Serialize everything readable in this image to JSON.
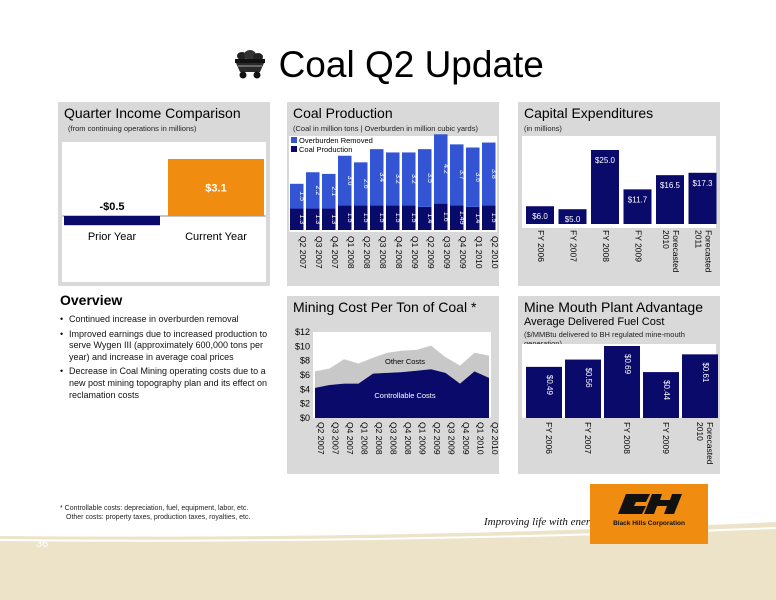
{
  "header": {
    "title": "Coal Q2 Update",
    "icon": "coal-cart-icon"
  },
  "colors": {
    "navy": "#0a0a6b",
    "blue": "#3355d4",
    "orange": "#f08c10",
    "gray": "#d9d9d9",
    "tan": "#ede3c8"
  },
  "overview": {
    "title": "Overview",
    "bullets": [
      "Continued increase in overburden removal",
      "Improved earnings due to increased production to serve Wygen III (approximately 600,000 tons per year) and increase in average coal prices",
      "Decrease in Coal Mining operating costs due to a new post mining topography plan and its effect on reclamation costs"
    ]
  },
  "footnote": {
    "line1": "* Controllable costs: depreciation, fuel, equipment, labor, etc.",
    "line2": "Other costs: property taxes, production taxes, royalties, etc."
  },
  "page_number": "36",
  "branding": {
    "tagline": "Improving life with energy",
    "company": "Black Hills Corporation"
  },
  "panels": {
    "income": {
      "title": "Quarter Income Comparison",
      "subtitle": "(from continuing operations in millions)"
    },
    "production": {
      "title": "Coal Production",
      "subtitle": "(Coal in million tons | Overburden in million cubic yards)"
    },
    "capex": {
      "title": "Capital Expenditures",
      "subtitle": "(in millions)"
    },
    "mining_cost": {
      "title": "Mining Cost Per Ton of Coal *"
    },
    "mine_mouth": {
      "title": "Mine Mouth Plant Advantage",
      "subtitle": "Average Delivered Fuel Cost",
      "note": "($/MMBtu delivered to BH regulated mine-mouth generation)"
    }
  },
  "chart_data": [
    {
      "type": "bar",
      "categories": [
        "Prior Year",
        "Current Year"
      ],
      "values": [
        -0.5,
        3.1
      ],
      "data_labels": [
        "-$0.5",
        "$3.1"
      ],
      "colors": [
        "#0a0a6b",
        "#f08c10"
      ]
    },
    {
      "type": "bar",
      "stacked": true,
      "categories": [
        "Q2 2007",
        "Q3 2007",
        "Q4 2007",
        "Q1 2008",
        "Q2 2008",
        "Q3 2008",
        "Q4 2008",
        "Q1 2009",
        "Q2 2009",
        "Q3 2009",
        "Q4 2009",
        "Q1 2010",
        "Q2 2010"
      ],
      "series": [
        {
          "name": "Coal Production",
          "values": [
            1.3,
            1.3,
            1.3,
            1.5,
            1.5,
            1.5,
            1.5,
            1.5,
            1.4,
            1.6,
            1.49,
            1.4,
            1.5
          ],
          "labels": [
            "1.3",
            "1.3",
            "1.3",
            "1.5",
            "1.5",
            "1.5",
            "1.5",
            "1.5",
            "1.4",
            "1.6",
            "1.49",
            "1.4",
            "1.5"
          ]
        },
        {
          "name": "Overburden Removed",
          "values": [
            1.5,
            2.2,
            2.1,
            3.0,
            2.6,
            3.4,
            3.2,
            3.2,
            3.5,
            4.2,
            3.7,
            3.6,
            3.8
          ],
          "labels": [
            "1.5",
            "2.2",
            "2.1",
            "3.0",
            "2.6",
            "3.4",
            "3.2",
            "3.2",
            "3.5",
            "4.2",
            "3.7",
            "3.6",
            "3.8"
          ]
        }
      ],
      "legend": [
        "Overburden Removed",
        "Coal Production"
      ]
    },
    {
      "type": "bar",
      "categories": [
        "FY 2006",
        "FY 2007",
        "FY 2008",
        "FY 2009",
        "Forecasted 2010",
        "Forecasted 2011"
      ],
      "values": [
        6.0,
        5.0,
        25.0,
        11.7,
        16.5,
        17.3
      ],
      "data_labels": [
        "$6.0",
        "$5.0",
        "$25.0",
        "$11.7",
        "$16.5",
        "$17.3"
      ]
    },
    {
      "type": "area",
      "stacked": true,
      "categories": [
        "Q2 2007",
        "Q3 2007",
        "Q4 2007",
        "Q1 2008",
        "Q2 2008",
        "Q3 2008",
        "Q4 2008",
        "Q1 2009",
        "Q2 2009",
        "Q3 2009",
        "Q4 2009",
        "Q1 2010",
        "Q2 2010"
      ],
      "series": [
        {
          "name": "Controllable Costs",
          "values": [
            4.2,
            4.6,
            4.8,
            4.8,
            6.2,
            6.3,
            6.4,
            6.6,
            6.8,
            6.3,
            4.8,
            6.5,
            5.6
          ]
        },
        {
          "name": "Other Costs",
          "values": [
            2.3,
            2.3,
            3.4,
            2.8,
            2.2,
            2.8,
            3.0,
            2.9,
            3.3,
            2.2,
            2.5,
            2.6,
            3.1
          ]
        }
      ],
      "yticks": [
        "$0",
        "$2",
        "$4",
        "$6",
        "$8",
        "$10",
        "$12"
      ],
      "ylim": [
        0,
        12
      ]
    },
    {
      "type": "bar",
      "categories": [
        "FY 2006",
        "FY 2007",
        "FY 2008",
        "FY 2009",
        "Forecasted 2010"
      ],
      "values": [
        0.49,
        0.56,
        0.69,
        0.44,
        0.61
      ],
      "data_labels": [
        "$0.49",
        "$0.56",
        "$0.69",
        "$0.44",
        "$0.61"
      ]
    }
  ]
}
